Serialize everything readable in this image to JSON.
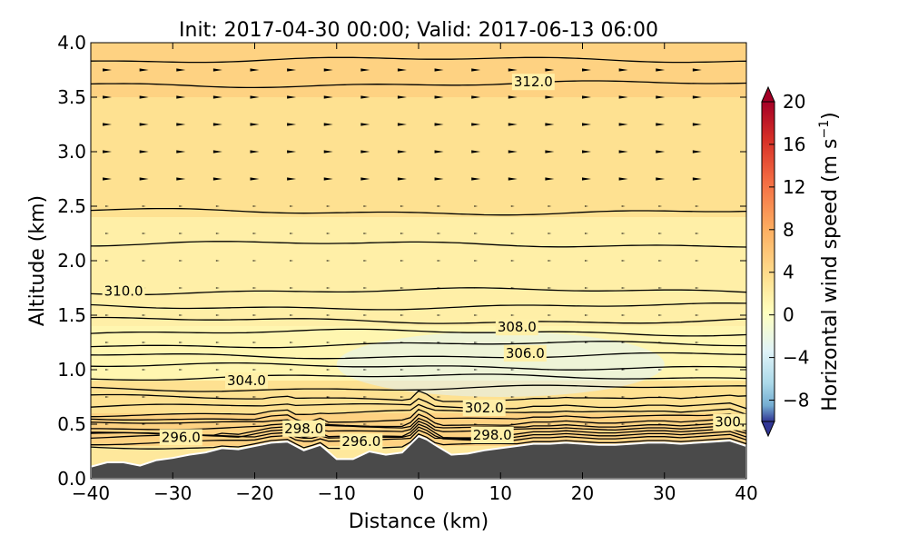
{
  "chart_data": {
    "type": "contour",
    "title": "Init: 2017-04-30 00:00; Valid: 2017-06-13 06:00",
    "xlabel": "Distance (km)",
    "ylabel": "Altitude (km)",
    "xlim": [
      -40,
      40
    ],
    "ylim": [
      0.0,
      4.0
    ],
    "x_ticks": [
      "−40",
      "−30",
      "−20",
      "−10",
      "0",
      "10",
      "20",
      "30",
      "40"
    ],
    "x_tick_values": [
      -40,
      -30,
      -20,
      -10,
      0,
      10,
      20,
      30,
      40
    ],
    "y_ticks": [
      "0.0",
      "0.5",
      "1.0",
      "1.5",
      "2.0",
      "2.5",
      "3.0",
      "3.5",
      "4.0"
    ],
    "y_tick_values": [
      0.0,
      0.5,
      1.0,
      1.5,
      2.0,
      2.5,
      3.0,
      3.5,
      4.0
    ],
    "colorbar": {
      "label": "Horizontal wind speed (m s",
      "label_exponent": "−1",
      "label_close": ")",
      "range": [
        -10,
        20
      ],
      "ticks": [
        "20",
        "16",
        "12",
        "8",
        "4",
        "0",
        "−4",
        "−8"
      ],
      "tick_values": [
        20,
        16,
        12,
        8,
        4,
        0,
        -4,
        -8
      ],
      "color_top": "#a50026",
      "color_mid": "#ffffbf",
      "color_bottom": "#313695"
    },
    "terrain": {
      "color": "#4a4a4a",
      "x": [
        -40,
        -38,
        -36,
        -34,
        -32,
        -30,
        -28,
        -26,
        -24,
        -22,
        -20,
        -18,
        -16,
        -14,
        -12,
        -10,
        -8,
        -6,
        -4,
        -2,
        0,
        1,
        2,
        4,
        6,
        8,
        10,
        12,
        14,
        16,
        18,
        20,
        22,
        24,
        26,
        28,
        30,
        32,
        34,
        36,
        38,
        40
      ],
      "alt": [
        0.11,
        0.15,
        0.15,
        0.12,
        0.17,
        0.19,
        0.22,
        0.24,
        0.28,
        0.27,
        0.3,
        0.33,
        0.34,
        0.26,
        0.31,
        0.18,
        0.18,
        0.25,
        0.22,
        0.24,
        0.39,
        0.36,
        0.31,
        0.22,
        0.23,
        0.26,
        0.28,
        0.3,
        0.32,
        0.32,
        0.33,
        0.32,
        0.31,
        0.31,
        0.32,
        0.33,
        0.33,
        0.32,
        0.33,
        0.34,
        0.35,
        0.3
      ]
    },
    "wind_field_bands": [
      {
        "alt": [
          0.3,
          0.6
        ],
        "speed": 6
      },
      {
        "alt": [
          0.6,
          0.9
        ],
        "speed": 4
      },
      {
        "alt": [
          0.9,
          1.4
        ],
        "speed": 1
      },
      {
        "alt": [
          1.4,
          2.4
        ],
        "speed": 2
      },
      {
        "alt": [
          2.4,
          3.5
        ],
        "speed": 4
      },
      {
        "alt": [
          3.5,
          4.0
        ],
        "speed": 6
      }
    ],
    "theta_contours": [
      {
        "level": 296.0,
        "label": "296.0",
        "label_x": -29,
        "label_alt": 0.38
      },
      {
        "level": 296.0,
        "label": "296.0",
        "label_x": -7,
        "label_alt": 0.34
      },
      {
        "level": 298.0,
        "label": "298.0",
        "label_x": -14,
        "label_alt": 0.46
      },
      {
        "level": 298.0,
        "label": "298.0",
        "label_x": 9,
        "label_alt": 0.4
      },
      {
        "level": 300.0,
        "label": "300.",
        "label_x": 38,
        "label_alt": 0.52
      },
      {
        "level": 302.0,
        "label": "302.0",
        "label_x": 8,
        "label_alt": 0.65
      },
      {
        "level": 304.0,
        "label": "304.0",
        "label_x": -21,
        "label_alt": 0.9
      },
      {
        "level": 306.0,
        "label": "306.0",
        "label_x": 13,
        "label_alt": 1.15
      },
      {
        "level": 308.0,
        "label": "308.0",
        "label_x": 12,
        "label_alt": 1.39
      },
      {
        "level": 310.0,
        "label": "310.0",
        "label_x": -36,
        "label_alt": 1.72
      },
      {
        "level": 312.0,
        "label": "312.0",
        "label_x": 14,
        "label_alt": 3.64
      }
    ],
    "theta_lines_alt": [
      0.3,
      0.34,
      0.37,
      0.4,
      0.43,
      0.46,
      0.5,
      0.55,
      0.6,
      0.66,
      0.74,
      0.83,
      0.93,
      1.03,
      1.13,
      1.23,
      1.34,
      1.45,
      1.58,
      1.72,
      2.15,
      2.45,
      3.62,
      3.84
    ]
  }
}
